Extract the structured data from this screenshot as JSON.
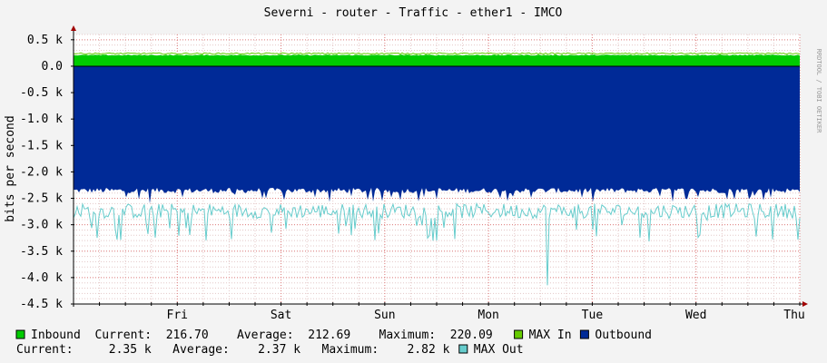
{
  "chart_data": {
    "type": "area",
    "title": "Severni - router - Traffic - ether1 - IMCO",
    "ylabel": "bits per second",
    "watermark": "RRDTOOL / TOBI OETIKER",
    "ylim": [
      -4500,
      600
    ],
    "grid": true,
    "y_ticks": [
      {
        "value": 500,
        "label": "0.5 k"
      },
      {
        "value": 0,
        "label": "0.0"
      },
      {
        "value": -500,
        "label": "-0.5 k"
      },
      {
        "value": -1000,
        "label": "-1.0 k"
      },
      {
        "value": -1500,
        "label": "-1.5 k"
      },
      {
        "value": -2000,
        "label": "-2.0 k"
      },
      {
        "value": -2500,
        "label": "-2.5 k"
      },
      {
        "value": -3000,
        "label": "-3.0 k"
      },
      {
        "value": -3500,
        "label": "-3.5 k"
      },
      {
        "value": -4000,
        "label": "-4.0 k"
      },
      {
        "value": -4500,
        "label": "-4.5 k"
      }
    ],
    "x_range_days": [
      0,
      7
    ],
    "x_ticks": [
      {
        "value": 1,
        "label": "Fri"
      },
      {
        "value": 2,
        "label": "Sat"
      },
      {
        "value": 3,
        "label": "Sun"
      },
      {
        "value": 4,
        "label": "Mon"
      },
      {
        "value": 5,
        "label": "Tue"
      },
      {
        "value": 6,
        "label": "Wed"
      },
      {
        "value": 7,
        "label": "Thu"
      }
    ],
    "series": [
      {
        "name": "Inbound",
        "color": "#00cc00",
        "kind": "area",
        "approx_value": 210
      },
      {
        "name": "MAX In",
        "color": "#66cc00",
        "kind": "line",
        "approx_value": 240
      },
      {
        "name": "Outbound",
        "color": "#002a97",
        "kind": "area",
        "approx_value": -2380,
        "typical_range": [
          -2450,
          -2300
        ],
        "dips": [
          {
            "x": 0.73,
            "value": -2750
          },
          {
            "x": 1.55,
            "value": -2520
          }
        ]
      },
      {
        "name": "MAX Out",
        "color": "#66cccc",
        "kind": "line",
        "approx_value": -2800,
        "typical_range": [
          -3000,
          -2600
        ],
        "dips": [
          {
            "x": 0.71,
            "value": -3800
          },
          {
            "x": 0.18,
            "value": -3250
          },
          {
            "x": 2.05,
            "value": -3150
          },
          {
            "x": 4.57,
            "value": -4500
          },
          {
            "x": 5.0,
            "value": -3300
          },
          {
            "x": 5.55,
            "value": -3450
          },
          {
            "x": 6.1,
            "value": -3100
          }
        ]
      }
    ]
  },
  "legend": {
    "row1": [
      {
        "swatch_color": "#00cc00",
        "name": "Inbound",
        "stats": "  Current:  216.70    Average:  212.69    Maximum:  220.09  "
      },
      {
        "swatch_color": "#66cc00",
        "name": "MAX In",
        "stats": ""
      },
      {
        "swatch_color": "#002a97",
        "name": "Outbound",
        "stats": ""
      }
    ],
    "row2": {
      "stats": "Current:     2.35 k   Average:    2.37 k   Maximum:    2.82 k",
      "swatch_color": "#66cccc",
      "name": "MAX Out"
    }
  }
}
